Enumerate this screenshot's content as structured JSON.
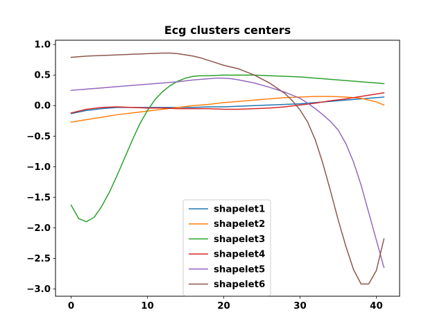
{
  "chart_data": {
    "type": "line",
    "title": "Ecg clusters centers",
    "xlabel": "",
    "ylabel": "",
    "xlim": [
      -2.05,
      43.05
    ],
    "ylim": [
      -3.12,
      1.07
    ],
    "xticks": [
      0,
      10,
      20,
      30,
      40
    ],
    "yticks": [
      1.0,
      0.5,
      0.0,
      -0.5,
      -1.0,
      -1.5,
      -2.0,
      -2.5,
      -3.0
    ],
    "ytick_labels": [
      "1.0",
      "0.5",
      "0.0",
      "−0.5",
      "−1.0",
      "−1.5",
      "−2.0",
      "−2.5",
      "−3.0"
    ],
    "grid": false,
    "legend_position": "lower-center",
    "series": [
      {
        "name": "shapelet1",
        "color": "#1f77b4",
        "x": [
          0,
          2,
          4,
          6,
          8,
          10,
          12,
          14,
          16,
          18,
          20,
          22,
          24,
          26,
          28,
          30,
          32,
          34,
          36,
          38,
          40,
          41
        ],
        "values": [
          -0.13,
          -0.08,
          -0.05,
          -0.03,
          -0.03,
          -0.03,
          -0.03,
          -0.03,
          -0.03,
          -0.02,
          -0.02,
          -0.01,
          0.0,
          0.01,
          0.02,
          0.03,
          0.05,
          0.07,
          0.09,
          0.11,
          0.13,
          0.14
        ]
      },
      {
        "name": "shapelet2",
        "color": "#ff7f0e",
        "x": [
          0,
          2,
          4,
          6,
          8,
          10,
          12,
          14,
          16,
          18,
          20,
          22,
          24,
          26,
          28,
          30,
          32,
          34,
          36,
          38,
          40,
          41
        ],
        "values": [
          -0.27,
          -0.23,
          -0.19,
          -0.15,
          -0.12,
          -0.09,
          -0.06,
          -0.03,
          0.0,
          0.02,
          0.05,
          0.07,
          0.09,
          0.11,
          0.13,
          0.14,
          0.15,
          0.15,
          0.14,
          0.12,
          0.06,
          0.01
        ]
      },
      {
        "name": "shapelet3",
        "color": "#2ca02c",
        "x": [
          0,
          1,
          2,
          3,
          4,
          5,
          6,
          7,
          8,
          9,
          10,
          11,
          12,
          13,
          14,
          15,
          16,
          17,
          18,
          20,
          22,
          24,
          26,
          28,
          30,
          32,
          34,
          36,
          38,
          40,
          41
        ],
        "values": [
          -1.63,
          -1.85,
          -1.9,
          -1.83,
          -1.65,
          -1.42,
          -1.15,
          -0.86,
          -0.57,
          -0.3,
          -0.08,
          0.1,
          0.23,
          0.33,
          0.4,
          0.45,
          0.48,
          0.49,
          0.49,
          0.5,
          0.5,
          0.5,
          0.49,
          0.48,
          0.47,
          0.45,
          0.43,
          0.41,
          0.39,
          0.37,
          0.36
        ]
      },
      {
        "name": "shapelet4",
        "color": "#d62728",
        "x": [
          0,
          2,
          4,
          6,
          8,
          10,
          12,
          14,
          16,
          18,
          20,
          22,
          24,
          26,
          28,
          30,
          32,
          34,
          36,
          38,
          40,
          41
        ],
        "values": [
          -0.12,
          -0.06,
          -0.03,
          -0.02,
          -0.03,
          -0.04,
          -0.04,
          -0.05,
          -0.05,
          -0.05,
          -0.06,
          -0.06,
          -0.05,
          -0.04,
          -0.02,
          0.01,
          0.04,
          0.08,
          0.11,
          0.15,
          0.19,
          0.21
        ]
      },
      {
        "name": "shapelet5",
        "color": "#9467bd",
        "x": [
          0,
          2,
          4,
          6,
          8,
          10,
          12,
          14,
          16,
          18,
          19,
          20,
          21,
          22,
          24,
          26,
          28,
          30,
          31,
          32,
          33,
          34,
          35,
          36,
          37,
          38,
          39,
          40,
          41
        ],
        "values": [
          0.25,
          0.27,
          0.29,
          0.31,
          0.33,
          0.35,
          0.37,
          0.39,
          0.42,
          0.44,
          0.45,
          0.45,
          0.44,
          0.42,
          0.37,
          0.3,
          0.22,
          0.12,
          0.04,
          -0.05,
          -0.15,
          -0.26,
          -0.4,
          -0.62,
          -0.92,
          -1.3,
          -1.75,
          -2.2,
          -2.65
        ]
      },
      {
        "name": "shapelet6",
        "color": "#8c564b",
        "x": [
          0,
          2,
          4,
          6,
          8,
          10,
          12,
          13,
          14,
          15,
          16,
          17,
          18,
          19,
          20,
          22,
          24,
          26,
          28,
          29,
          30,
          31,
          32,
          33,
          34,
          35,
          36,
          37,
          38,
          39,
          40,
          41
        ],
        "values": [
          0.79,
          0.81,
          0.82,
          0.83,
          0.84,
          0.85,
          0.86,
          0.86,
          0.85,
          0.83,
          0.81,
          0.78,
          0.74,
          0.7,
          0.66,
          0.6,
          0.5,
          0.37,
          0.2,
          0.08,
          -0.07,
          -0.27,
          -0.56,
          -0.95,
          -1.4,
          -1.87,
          -2.3,
          -2.68,
          -2.92,
          -2.92,
          -2.7,
          -2.18
        ]
      }
    ]
  }
}
